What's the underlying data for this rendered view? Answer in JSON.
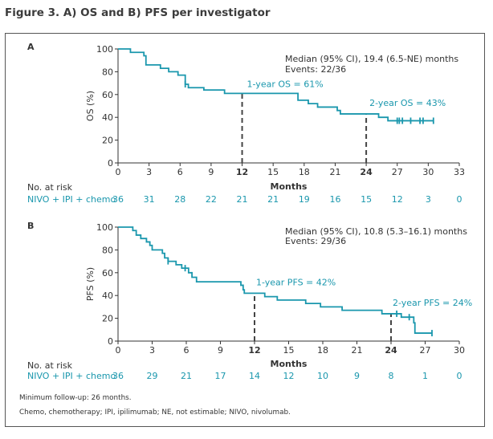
{
  "figure_title": "Figure 3. A) OS and B) PFS per investigator",
  "colors": {
    "curve": "#1a97ad",
    "axis": "#333333",
    "dash": "#444444"
  },
  "chart_data": [
    {
      "type": "line",
      "panel_label": "A",
      "ylabel": "OS (%)",
      "xlabel": "Months",
      "xlim": [
        0,
        33
      ],
      "ylim": [
        0,
        100
      ],
      "xticks": [
        0,
        3,
        6,
        9,
        12,
        15,
        18,
        21,
        24,
        27,
        30,
        33
      ],
      "bold_xticks": [
        12,
        24
      ],
      "yticks": [
        0,
        20,
        40,
        60,
        80,
        100
      ],
      "median_text": "Median (95% CI), 19.4 (6.5-NE) months",
      "events_text": "Events: 22/36",
      "annotations": [
        {
          "text": "1-year OS = 61%",
          "x": 12,
          "y": 61
        },
        {
          "text": "2-year OS = 43%",
          "x": 24,
          "y": 43
        }
      ],
      "curve": [
        [
          0,
          100
        ],
        [
          1.2,
          97
        ],
        [
          2.5,
          94
        ],
        [
          2.7,
          86
        ],
        [
          3.9,
          86
        ],
        [
          4.1,
          83
        ],
        [
          4.9,
          80
        ],
        [
          5.8,
          77
        ],
        [
          6.5,
          69
        ],
        [
          6.8,
          66
        ],
        [
          8.1,
          66
        ],
        [
          8.3,
          64
        ],
        [
          10.1,
          64
        ],
        [
          10.3,
          61
        ],
        [
          17.1,
          61
        ],
        [
          17.4,
          55
        ],
        [
          18.4,
          52
        ],
        [
          19.3,
          49
        ],
        [
          21.2,
          46
        ],
        [
          21.5,
          43
        ],
        [
          24.9,
          43
        ],
        [
          25.2,
          40
        ],
        [
          26.1,
          37
        ],
        [
          30.5,
          37
        ]
      ],
      "censors": [
        6.5,
        27.0,
        27.2,
        27.5,
        28.3,
        29.2,
        29.5,
        30.5
      ],
      "risk_label": "No. at risk",
      "risk_group": "NIVO + IPI + chemo",
      "risk_times": [
        0,
        3,
        6,
        9,
        12,
        15,
        18,
        21,
        24,
        27,
        30,
        33
      ],
      "at_risk": [
        36,
        31,
        28,
        22,
        21,
        21,
        19,
        16,
        15,
        12,
        3,
        0
      ]
    },
    {
      "type": "line",
      "panel_label": "B",
      "ylabel": "PFS (%)",
      "xlabel": "Months",
      "xlim": [
        0,
        30
      ],
      "ylim": [
        0,
        100
      ],
      "xticks": [
        0,
        3,
        6,
        9,
        12,
        15,
        18,
        21,
        24,
        27,
        30
      ],
      "bold_xticks": [
        12,
        24
      ],
      "yticks": [
        0,
        20,
        40,
        60,
        80,
        100
      ],
      "median_text": "Median (95% CI), 10.8 (5.3–16.1) months",
      "events_text": "Events: 29/36",
      "annotations": [
        {
          "text": "1-year PFS = 42%",
          "x": 12,
          "y": 42
        },
        {
          "text": "2-year PFS = 24%",
          "x": 24,
          "y": 24
        }
      ],
      "curve": [
        [
          0,
          100
        ],
        [
          1.3,
          97
        ],
        [
          1.6,
          93
        ],
        [
          2.0,
          90
        ],
        [
          2.5,
          87
        ],
        [
          2.8,
          84
        ],
        [
          3.0,
          80
        ],
        [
          3.9,
          77
        ],
        [
          4.1,
          73
        ],
        [
          4.4,
          70
        ],
        [
          5.1,
          67
        ],
        [
          5.6,
          64
        ],
        [
          6.2,
          60
        ],
        [
          6.5,
          56
        ],
        [
          6.9,
          52
        ],
        [
          10.8,
          49
        ],
        [
          11.0,
          45
        ],
        [
          11.1,
          42
        ],
        [
          12.9,
          39
        ],
        [
          14.0,
          36
        ],
        [
          16.5,
          33
        ],
        [
          17.8,
          30
        ],
        [
          19.7,
          27
        ],
        [
          23.2,
          24
        ],
        [
          24.9,
          21
        ],
        [
          26.0,
          16
        ],
        [
          26.1,
          7
        ],
        [
          27.6,
          7
        ]
      ],
      "censors": [
        4.4,
        5.9,
        24.5,
        25.6,
        27.6
      ],
      "risk_label": "No. at risk",
      "risk_group": "NIVO + IPI + chemo",
      "risk_times": [
        0,
        3,
        6,
        9,
        12,
        15,
        18,
        21,
        24,
        27,
        30
      ],
      "at_risk": [
        36,
        29,
        21,
        17,
        14,
        12,
        10,
        9,
        8,
        1,
        0
      ]
    }
  ],
  "footnotes": {
    "follow_up": "Minimum follow-up: 26 months.",
    "abbreviations": "Chemo, chemotherapy; IPI, ipilimumab; NE, not estimable; NIVO, nivolumab."
  }
}
